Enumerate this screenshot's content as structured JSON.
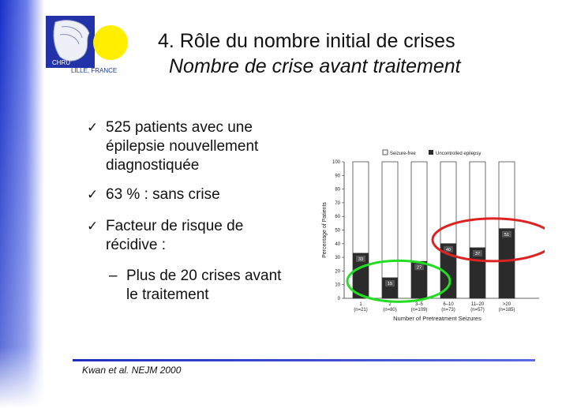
{
  "logo": {
    "chru": "CHRU",
    "lille": "LILLE, FRANCE"
  },
  "title": {
    "line1": "4. Rôle du nombre initial de crises",
    "line2": "Nombre de crise avant traitement"
  },
  "bullets": [
    {
      "lines": [
        "525 patients avec une",
        "épilepsie nouvellement",
        "diagnostiquée"
      ]
    },
    {
      "lines": [
        "63 % : sans crise"
      ]
    },
    {
      "lines": [
        "Facteur de risque de",
        "récidive :"
      ]
    }
  ],
  "sub_bullet": {
    "dash": "–",
    "lines": [
      "Plus de 20 crises avant",
      "le traitement"
    ]
  },
  "check_glyph": "✓",
  "footer": "Kwan et al. NEJM 2000",
  "chart_data": {
    "type": "bar",
    "legend": [
      "Seizure-free",
      "Uncontrolled epilepsy"
    ],
    "legend_position": "top",
    "categories": [
      "1",
      "2",
      "3–5",
      "6–10",
      "11–20",
      ">20"
    ],
    "category_n": [
      "(n=21)",
      "(n=80)",
      "(n=109)",
      "(n=73)",
      "(n=57)",
      "(n=185)"
    ],
    "uncontrolled": [
      33,
      15,
      27,
      40,
      37,
      51
    ],
    "ylim": [
      0,
      100
    ],
    "yticks": [
      0,
      10,
      20,
      30,
      40,
      50,
      60,
      70,
      80,
      90,
      100
    ],
    "ylabel": "Percentage of Patients",
    "xlabel": "Number of Pretreatment Seizures",
    "colors": {
      "seizure_free": "#ffffff",
      "uncontrolled": "#2b2b2b",
      "green_circle": "#22dd22",
      "red_circle": "#dd2222"
    }
  }
}
